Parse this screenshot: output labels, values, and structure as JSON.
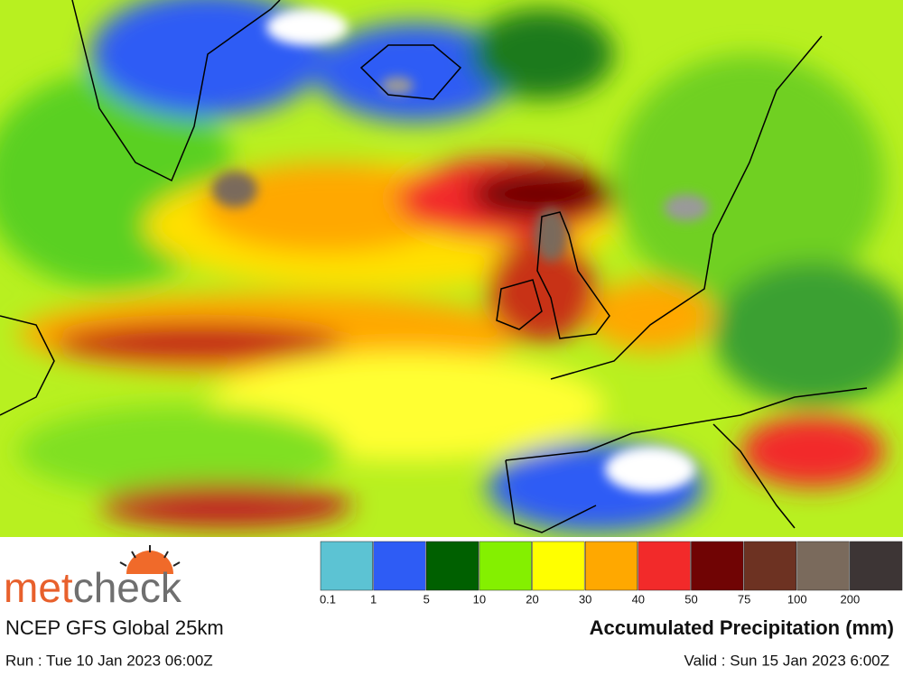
{
  "logo": [
    "met",
    "check"
  ],
  "model": "NCEP GFS Global 25km",
  "run": "Run : Tue 10 Jan 2023 06:00Z",
  "valid": "Valid : Sun 15 Jan 2023 6:00Z",
  "legend": {
    "title": "Accumulated Precipitation (mm)",
    "levels": [
      0.1,
      1,
      5,
      10,
      20,
      30,
      40,
      50,
      75,
      100,
      200
    ],
    "colors": [
      "#5cc3d3",
      "#2e5cf5",
      "#006000",
      "#84f000",
      "#ffff00",
      "#ffa800",
      "#f22a2a",
      "#700404",
      "#6d3222",
      "#7a6a5c",
      "#3d3535"
    ]
  }
}
